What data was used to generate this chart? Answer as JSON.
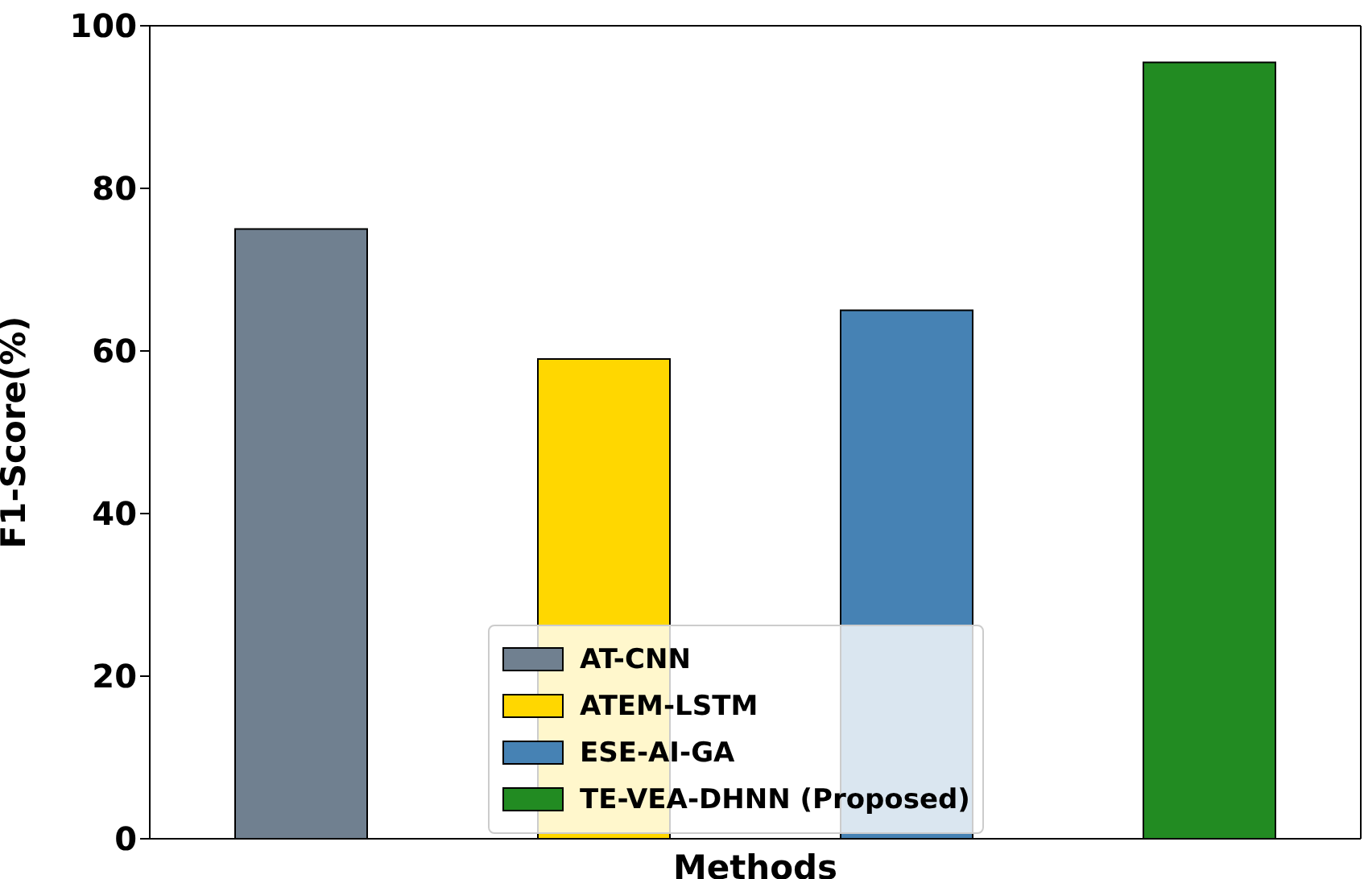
{
  "chart_data": {
    "type": "bar",
    "xlabel": "Methods",
    "ylabel": "F1-Score(%)",
    "categories": [
      null,
      null,
      null,
      null
    ],
    "series": [
      {
        "name": "AT-CNN",
        "color": "#708090",
        "values": [
          75,
          null,
          null,
          null
        ]
      },
      {
        "name": "ATEM-LSTM",
        "color": "#ffd700",
        "values": [
          null,
          59,
          null,
          null
        ]
      },
      {
        "name": "ESE-AI-GA",
        "color": "#4682b4",
        "values": [
          null,
          null,
          65,
          null
        ]
      },
      {
        "name": "TE-VEA-DHNN (Proposed)",
        "color": "#228b22",
        "values": [
          null,
          null,
          null,
          95.5
        ]
      }
    ],
    "ylim": [
      0,
      100
    ],
    "yticks": [
      0,
      20,
      40,
      60,
      80,
      100
    ],
    "grid": false,
    "legend": "bottom"
  }
}
